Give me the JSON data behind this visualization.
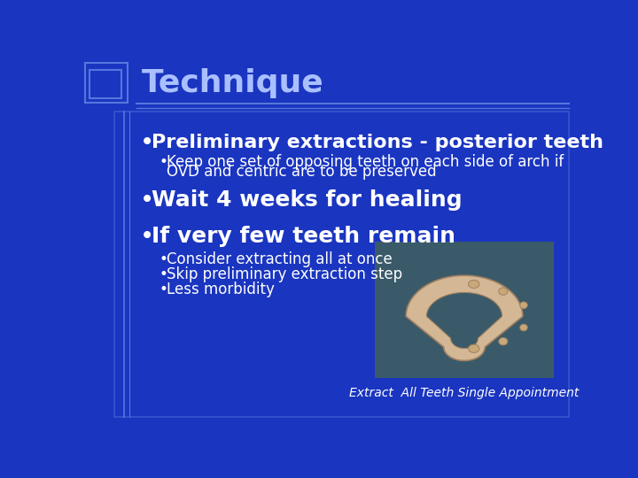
{
  "bg_color": "#1a35c0",
  "title": "Technique",
  "title_color": "#aabfff",
  "title_fontsize": 26,
  "line_color": "#5577dd",
  "bullet1": "Preliminary extractions - posterior teeth",
  "bullet1_sub1": "Keep one set of opposing teeth on each side of arch if",
  "bullet1_sub2": "OVD and centric are to be preserved",
  "bullet2": "Wait 4 weeks for healing",
  "bullet3": "If very few teeth remain",
  "bullet3_subs": [
    "Consider extracting all at once",
    "Skip preliminary extraction step",
    "Less morbidity"
  ],
  "caption": "Extract  All Teeth Single Appointment",
  "text_color": "#ffffff",
  "content_fontsize": 16,
  "sub_fontsize": 12,
  "caption_fontsize": 10,
  "img_bg_color": "#3a5a6a",
  "arch_color": "#d4b896",
  "arch_edge": "#a08060",
  "tooth_color": "#c8a878"
}
